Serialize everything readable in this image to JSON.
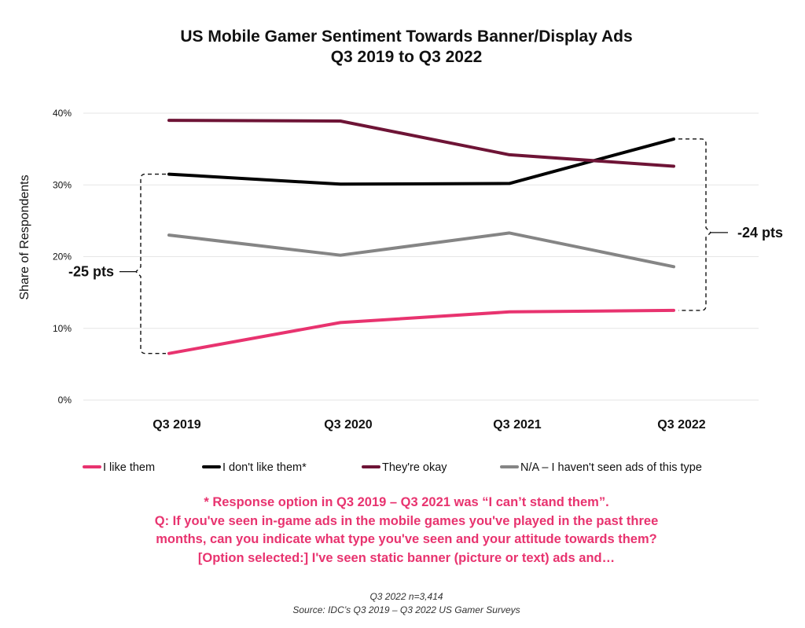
{
  "chart_data": {
    "type": "line",
    "title": [
      "US Mobile Gamer Sentiment Towards Banner/Display Ads",
      "Q3 2019 to Q3 2022"
    ],
    "xlabel": "",
    "ylabel": "Share of Respondents",
    "categories": [
      "Q3 2019",
      "Q3 2020",
      "Q3 2021",
      "Q3 2022"
    ],
    "y_ticks": [
      "0%",
      "10%",
      "20%",
      "30%",
      "40%"
    ],
    "ylim": [
      0,
      40
    ],
    "grid": true,
    "legend_position": "bottom",
    "series": [
      {
        "name": "I like them",
        "color": "#e8336f",
        "values": [
          6.5,
          10.8,
          12.3,
          12.5
        ]
      },
      {
        "name": "I don't like them*",
        "color": "#000000",
        "values": [
          31.5,
          30.1,
          30.2,
          36.4
        ]
      },
      {
        "name": "They're okay",
        "color": "#6e1436",
        "values": [
          39.0,
          38.9,
          34.2,
          32.6
        ]
      },
      {
        "name": "N/A – I haven't seen ads of this type",
        "color": "#858585",
        "values": [
          23.0,
          20.2,
          23.3,
          18.6
        ]
      }
    ],
    "annotations": [
      {
        "label": "-25 pts",
        "side": "left",
        "from": [
          6.5,
          31.5
        ]
      },
      {
        "label": "-24 pts",
        "side": "right",
        "from": [
          12.5,
          36.4
        ]
      }
    ]
  },
  "footnote": [
    "* Response option in Q3 2019 – Q3 2021 was “I can’t stand them”.",
    "Q: If you've seen in-game ads in the mobile games you've played in the past three",
    "months, can you indicate what type you've seen and your attitude towards them?",
    "[Option selected:] I've seen static banner (picture or text) ads and…"
  ],
  "footnote_color": "#e8336f",
  "source": [
    "Q3 2022 n=3,414",
    "Source: IDC’s Q3 2019 – Q3 2022 US Gamer Surveys"
  ]
}
